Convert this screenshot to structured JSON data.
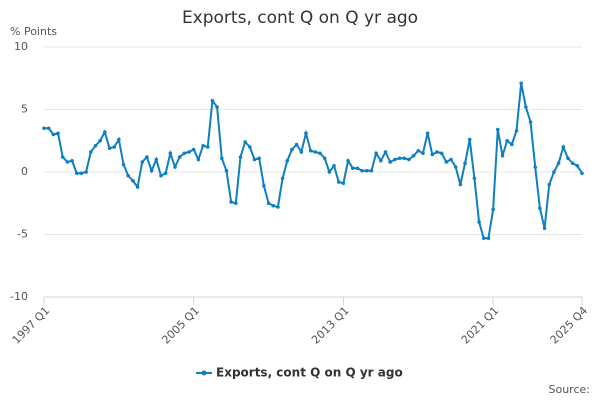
{
  "chart_data": {
    "type": "line",
    "title": "Exports, cont Q on Q yr ago",
    "y_label": "% Points",
    "source": "Source:",
    "categories": [
      "1997 Q1",
      null,
      null,
      null,
      null,
      null,
      null,
      null,
      null,
      null,
      null,
      null,
      null,
      null,
      null,
      null,
      null,
      null,
      null,
      null,
      null,
      null,
      null,
      null,
      null,
      null,
      null,
      null,
      null,
      null,
      null,
      null,
      "2005 Q1",
      null,
      null,
      null,
      null,
      null,
      null,
      null,
      null,
      null,
      null,
      null,
      null,
      null,
      null,
      null,
      null,
      null,
      null,
      null,
      null,
      null,
      null,
      null,
      null,
      null,
      null,
      null,
      null,
      null,
      null,
      null,
      "2013 Q1",
      null,
      null,
      null,
      null,
      null,
      null,
      null,
      null,
      null,
      null,
      null,
      null,
      null,
      null,
      null,
      null,
      null,
      null,
      null,
      null,
      null,
      null,
      null,
      null,
      null,
      null,
      null,
      null,
      null,
      null,
      null,
      "2021 Q1",
      null,
      null,
      null,
      null,
      null,
      null,
      null,
      null,
      null,
      null,
      null,
      null,
      null,
      null,
      null,
      null,
      null,
      null,
      "2025 Q4"
    ],
    "series": [
      {
        "name": "Exports, cont Q on Q yr ago",
        "color": "#0f7fc0",
        "values": [
          3.5,
          3.5,
          3.0,
          3.1,
          1.2,
          0.8,
          0.9,
          -0.1,
          -0.1,
          0.0,
          1.6,
          2.1,
          2.5,
          3.2,
          1.9,
          2.0,
          2.6,
          0.6,
          -0.3,
          -0.7,
          -1.2,
          0.8,
          1.2,
          0.1,
          1.0,
          -0.3,
          -0.1,
          1.5,
          0.4,
          1.2,
          1.5,
          1.6,
          1.8,
          1.0,
          2.1,
          2.0,
          5.7,
          5.2,
          1.1,
          0.1,
          -2.4,
          -2.5,
          1.2,
          2.4,
          2.0,
          1.0,
          1.1,
          -1.1,
          -2.5,
          -2.7,
          -2.8,
          -0.5,
          0.9,
          1.8,
          2.2,
          1.6,
          3.1,
          1.7,
          1.6,
          1.5,
          1.1,
          0.0,
          0.5,
          -0.8,
          -0.9,
          0.9,
          0.3,
          0.3,
          0.1,
          0.1,
          0.1,
          1.5,
          0.9,
          1.6,
          0.8,
          1.0,
          1.1,
          1.1,
          1.0,
          1.3,
          1.7,
          1.5,
          3.1,
          1.4,
          1.6,
          1.5,
          0.8,
          1.0,
          0.4,
          -1.0,
          0.7,
          2.6,
          -0.5,
          -4.0,
          -5.3,
          -5.3,
          -3.0,
          3.4,
          1.3,
          2.5,
          2.2,
          3.3,
          7.1,
          5.2,
          4.0,
          0.4,
          -2.9,
          -4.5,
          -1.0,
          0.0,
          0.7,
          2.0,
          1.1,
          0.7,
          0.5,
          -0.1
        ]
      }
    ],
    "ylim": [
      -10,
      10
    ],
    "yticks": [
      10,
      5,
      0,
      -5,
      -10
    ],
    "grid": true,
    "legend": "bottom"
  }
}
